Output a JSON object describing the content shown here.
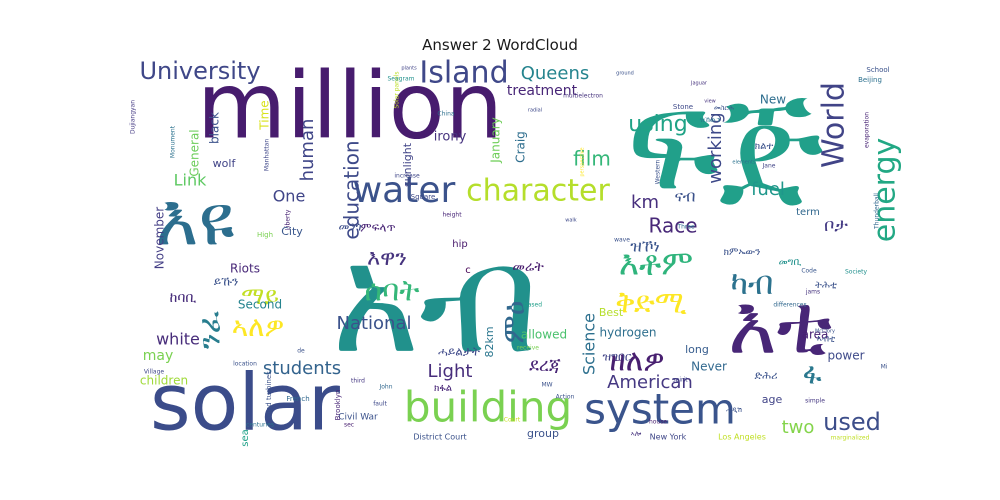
{
  "chart_data": {
    "type": "wordcloud",
    "title": "Answer 2 WordCloud",
    "colormap": "viridis",
    "words": [
      {
        "text": "ፍጅ",
        "weight": 100,
        "color": "#21a08a"
      },
      {
        "text": "million",
        "weight": 92,
        "color": "#471c6e"
      },
      {
        "text": "አብ",
        "weight": 90,
        "color": "#21918c"
      },
      {
        "text": "solar",
        "weight": 78,
        "color": "#3b4c8a"
      },
      {
        "text": "እዩ",
        "weight": 70,
        "color": "#2c6e8e"
      },
      {
        "text": "እቲ",
        "weight": 66,
        "color": "#482677"
      },
      {
        "text": "building",
        "weight": 46,
        "color": "#7ad151"
      },
      {
        "text": "system",
        "weight": 44,
        "color": "#3a548c"
      },
      {
        "text": "water",
        "weight": 40,
        "color": "#3b528b"
      },
      {
        "text": "character",
        "weight": 34,
        "color": "#b5de2b"
      },
      {
        "text": "energy",
        "weight": 30,
        "color": "#22a884"
      },
      {
        "text": "World",
        "weight": 30,
        "color": "#414487"
      },
      {
        "text": "Island",
        "weight": 28,
        "color": "#3f4889"
      },
      {
        "text": "University",
        "weight": 24,
        "color": "#3f4788"
      },
      {
        "text": "ሰባት",
        "weight": 28,
        "color": "#35b779"
      },
      {
        "text": "እቶም",
        "weight": 30,
        "color": "#2fb47c"
      },
      {
        "text": "ቅድሚ",
        "weight": 30,
        "color": "#fde725"
      },
      {
        "text": "ዘለዎ",
        "weight": 26,
        "color": "#481f70"
      },
      {
        "text": "ካብ",
        "weight": 28,
        "color": "#2c728e"
      },
      {
        "text": "ኣለዎ",
        "weight": 28,
        "color": "#fde725"
      },
      {
        "text": "ንፈ",
        "weight": 26,
        "color": "#287d8e"
      },
      {
        "text": "ማይ",
        "weight": 24,
        "color": "#c2df23"
      },
      {
        "text": "ምዕ",
        "weight": 26,
        "color": "#31688e"
      },
      {
        "text": "ፋ",
        "weight": 26,
        "color": "#2a788e"
      },
      {
        "text": "እዋን",
        "weight": 22,
        "color": "#46337e"
      },
      {
        "text": "education",
        "weight": 20,
        "color": "#3e4a89"
      },
      {
        "text": "Queens",
        "weight": 18,
        "color": "#25848e"
      },
      {
        "text": "using",
        "weight": 20,
        "color": "#20a386"
      },
      {
        "text": "film",
        "weight": 20,
        "color": "#35b779"
      },
      {
        "text": "human",
        "weight": 18,
        "color": "#404688"
      },
      {
        "text": "working",
        "weight": 17,
        "color": "#3e4989"
      },
      {
        "text": "Race",
        "weight": 20,
        "color": "#482878"
      },
      {
        "text": "National",
        "weight": 18,
        "color": "#3b528b"
      },
      {
        "text": "Science",
        "weight": 16,
        "color": "#2d708e"
      },
      {
        "text": "American",
        "weight": 18,
        "color": "#453882"
      },
      {
        "text": "students",
        "weight": 18,
        "color": "#33638d"
      },
      {
        "text": "used",
        "weight": 22,
        "color": "#3d4e8a"
      },
      {
        "text": "Light",
        "weight": 18,
        "color": "#472d7b"
      },
      {
        "text": "ደረጃ",
        "weight": 18,
        "color": "#482475"
      },
      {
        "text": "white",
        "weight": 16,
        "color": "#472c7a"
      },
      {
        "text": "fuel",
        "weight": 16,
        "color": "#1f978b"
      },
      {
        "text": "km",
        "weight": 18,
        "color": "#472f7d"
      },
      {
        "text": "hydrogen",
        "weight": 13,
        "color": "#2e6f8e"
      },
      {
        "text": "two",
        "weight": 18,
        "color": "#84d44b"
      },
      {
        "text": "Link",
        "weight": 16,
        "color": "#5ec962"
      },
      {
        "text": "One",
        "weight": 16,
        "color": "#404588"
      },
      {
        "text": "treatment",
        "weight": 14,
        "color": "#482677"
      },
      {
        "text": "January",
        "weight": 12,
        "color": "#6ece58"
      },
      {
        "text": "irony",
        "weight": 14,
        "color": "#46327e"
      },
      {
        "text": "sunlight",
        "weight": 11,
        "color": "#414487"
      },
      {
        "text": "Craig",
        "weight": 12,
        "color": "#2e6e8e"
      },
      {
        "text": "black",
        "weight": 12,
        "color": "#3b528b"
      },
      {
        "text": "General",
        "weight": 12,
        "color": "#6ccd5a"
      },
      {
        "text": "Time",
        "weight": 12,
        "color": "#d8e219"
      },
      {
        "text": "wolf",
        "weight": 11,
        "color": "#414487"
      },
      {
        "text": "City",
        "weight": 11,
        "color": "#39568c"
      },
      {
        "text": "November",
        "weight": 12,
        "color": "#433e85"
      },
      {
        "text": "Riots",
        "weight": 12,
        "color": "#482878"
      },
      {
        "text": "Second",
        "weight": 12,
        "color": "#25838e"
      },
      {
        "text": "children",
        "weight": 12,
        "color": "#a0da39"
      },
      {
        "text": "may",
        "weight": 14,
        "color": "#7ad151"
      },
      {
        "text": "allowed",
        "weight": 12,
        "color": "#4ac16d"
      },
      {
        "text": "82km",
        "weight": 11,
        "color": "#2a768e"
      },
      {
        "text": "Best",
        "weight": 11,
        "color": "#b5de2b"
      },
      {
        "text": "long",
        "weight": 11,
        "color": "#365c8d"
      },
      {
        "text": "Never",
        "weight": 12,
        "color": "#31688e"
      },
      {
        "text": "group",
        "weight": 11,
        "color": "#3b528b"
      },
      {
        "text": "term",
        "weight": 10,
        "color": "#31688e"
      },
      {
        "text": "area",
        "weight": 12,
        "color": "#482173"
      },
      {
        "text": "power",
        "weight": 12,
        "color": "#3e4a89"
      },
      {
        "text": "age",
        "weight": 11,
        "color": "#414487"
      },
      {
        "text": "New",
        "weight": 12,
        "color": "#2e6e8e"
      },
      {
        "text": "hip",
        "weight": 10,
        "color": "#481a6c"
      },
      {
        "text": "c",
        "weight": 10,
        "color": "#440154"
      },
      {
        "text": "sea",
        "weight": 10,
        "color": "#1fa188"
      },
      {
        "text": "Civil War",
        "weight": 9,
        "color": "#3b528b"
      },
      {
        "text": "District Court",
        "weight": 8,
        "color": "#3b528b"
      },
      {
        "text": "New York",
        "weight": 8,
        "color": "#3f4788"
      },
      {
        "text": "Los Angeles",
        "weight": 8,
        "color": "#c0df25"
      },
      {
        "text": "Brooklyn",
        "weight": 7,
        "color": "#482677"
      },
      {
        "text": "wind turbines",
        "weight": 7,
        "color": "#3b528b"
      },
      {
        "text": "French",
        "weight": 7,
        "color": "#31688e"
      },
      {
        "text": "Square",
        "weight": 7,
        "color": "#3e4a89"
      },
      {
        "text": "multielectron",
        "weight": 6,
        "color": "#46337e"
      },
      {
        "text": "Solar panels",
        "weight": 6,
        "color": "#bddf26"
      },
      {
        "text": "Manhattan",
        "weight": 6,
        "color": "#3f4788"
      },
      {
        "text": "Monument",
        "weight": 6,
        "color": "#2c728e"
      },
      {
        "text": "Dujiangyan",
        "weight": 6,
        "color": "#443a83"
      },
      {
        "text": "Beijing",
        "weight": 7,
        "color": "#2d708e"
      },
      {
        "text": "School",
        "weight": 7,
        "color": "#3b528b"
      },
      {
        "text": "Thunderball",
        "weight": 6,
        "color": "#31688e"
      },
      {
        "text": "evaporation",
        "weight": 6,
        "color": "#482475"
      },
      {
        "text": "Society",
        "weight": 6,
        "color": "#21908d"
      },
      {
        "text": "differences",
        "weight": 6,
        "color": "#31688e"
      },
      {
        "text": "jams",
        "weight": 6,
        "color": "#46337e"
      },
      {
        "text": "Code",
        "weight": 6,
        "color": "#39568c"
      },
      {
        "text": "simple",
        "weight": 6,
        "color": "#453882"
      },
      {
        "text": "marginalized",
        "weight": 6,
        "color": "#c0df25"
      },
      {
        "text": "house",
        "weight": 6,
        "color": "#481f70"
      },
      {
        "text": "spirit",
        "weight": 6,
        "color": "#414487"
      },
      {
        "text": "Stone",
        "weight": 7,
        "color": "#3e4989"
      },
      {
        "text": "Western",
        "weight": 6,
        "color": "#3b528b"
      },
      {
        "text": "Jane",
        "weight": 6,
        "color": "#414487"
      },
      {
        "text": "increase",
        "weight": 6,
        "color": "#3f4788"
      },
      {
        "text": "Seagram",
        "weight": 6,
        "color": "#21918c"
      },
      {
        "text": "Liberty",
        "weight": 6,
        "color": "#482475"
      },
      {
        "text": "High",
        "weight": 7,
        "color": "#7ad151"
      },
      {
        "text": "Village",
        "weight": 6,
        "color": "#3f4788"
      },
      {
        "text": "location",
        "weight": 6,
        "color": "#3b528b"
      },
      {
        "text": "third",
        "weight": 6,
        "color": "#453882"
      },
      {
        "text": "John",
        "weight": 6,
        "color": "#31688e"
      },
      {
        "text": "based",
        "weight": 6,
        "color": "#1f9e89"
      },
      {
        "text": "receive",
        "weight": 6,
        "color": "#7ad151"
      },
      {
        "text": "Action",
        "weight": 6,
        "color": "#3b528b"
      },
      {
        "text": "Court",
        "weight": 6,
        "color": "#c8e020"
      },
      {
        "text": "fault",
        "weight": 6,
        "color": "#3e4989"
      },
      {
        "text": "centuries",
        "weight": 6,
        "color": "#2c728e"
      },
      {
        "text": "sec",
        "weight": 6,
        "color": "#481f70"
      },
      {
        "text": "MW",
        "weight": 6,
        "color": "#3b528b"
      },
      {
        "text": "wave",
        "weight": 6,
        "color": "#3b528b"
      },
      {
        "text": "China",
        "weight": 6,
        "color": "#2d708e"
      },
      {
        "text": "Three",
        "weight": 6,
        "color": "#2d708e"
      },
      {
        "text": "walk",
        "weight": 5,
        "color": "#3e4989"
      },
      {
        "text": "plants",
        "weight": 5,
        "color": "#414487"
      },
      {
        "text": "ground",
        "weight": 5,
        "color": "#3b528b"
      },
      {
        "text": "perspective",
        "weight": 5,
        "color": "#fde725"
      },
      {
        "text": "radial",
        "weight": 5,
        "color": "#3e4989"
      },
      {
        "text": "Jaguar",
        "weight": 5,
        "color": "#46337e"
      },
      {
        "text": "view",
        "weight": 5,
        "color": "#46337e"
      },
      {
        "text": "elements",
        "weight": 5,
        "color": "#2c728e"
      },
      {
        "text": "height",
        "weight": 6,
        "color": "#482677"
      },
      {
        "text": "de",
        "weight": 6,
        "color": "#3b528b"
      },
      {
        "text": "Mi",
        "weight": 6,
        "color": "#3b528b"
      },
      {
        "text": "McClory",
        "weight": 5,
        "color": "#3b528b"
      },
      {
        "text": "ዝኾነ",
        "weight": 16,
        "color": "#3a548c"
      },
      {
        "text": "ምፍላጥ",
        "weight": 12,
        "color": "#482475"
      },
      {
        "text": "ናብ",
        "weight": 16,
        "color": "#3b528b"
      },
      {
        "text": "መንጎ",
        "weight": 12,
        "color": "#3d4e8a"
      },
      {
        "text": "መሬት",
        "weight": 14,
        "color": "#481c6e"
      },
      {
        "text": "ክምኡውን",
        "weight": 10,
        "color": "#3b528b"
      },
      {
        "text": "መግቢ",
        "weight": 10,
        "color": "#21918c"
      },
      {
        "text": "ቦታ",
        "weight": 18,
        "color": "#443b84"
      },
      {
        "text": "ትሕቲ",
        "weight": 10,
        "color": "#3b528b"
      },
      {
        "text": "ኣብቲ",
        "weight": 9,
        "color": "#3b528b"
      },
      {
        "text": "ዝግበር",
        "weight": 12,
        "color": "#414487"
      },
      {
        "text": "ሓይልታት",
        "weight": 12,
        "color": "#3e4989"
      },
      {
        "text": "ክልተ",
        "weight": 10,
        "color": "#3b528b"
      },
      {
        "text": "ክፋል",
        "weight": 10,
        "color": "#482677"
      },
      {
        "text": "ከባቢ",
        "weight": 14,
        "color": "#472c7a"
      },
      {
        "text": "ይኹን",
        "weight": 12,
        "color": "#3b528b"
      },
      {
        "text": "ድሕሪ",
        "weight": 11,
        "color": "#3b528b"
      },
      {
        "text": "ዝኸውን",
        "weight": 7,
        "color": "#2c728e"
      },
      {
        "text": "መስርሕ",
        "weight": 7,
        "color": "#3b528b"
      },
      {
        "text": "ኣሎ",
        "weight": 7,
        "color": "#46337e"
      },
      {
        "text": "ሓዲሽ",
        "weight": 7,
        "color": "#3b528b"
      }
    ]
  }
}
